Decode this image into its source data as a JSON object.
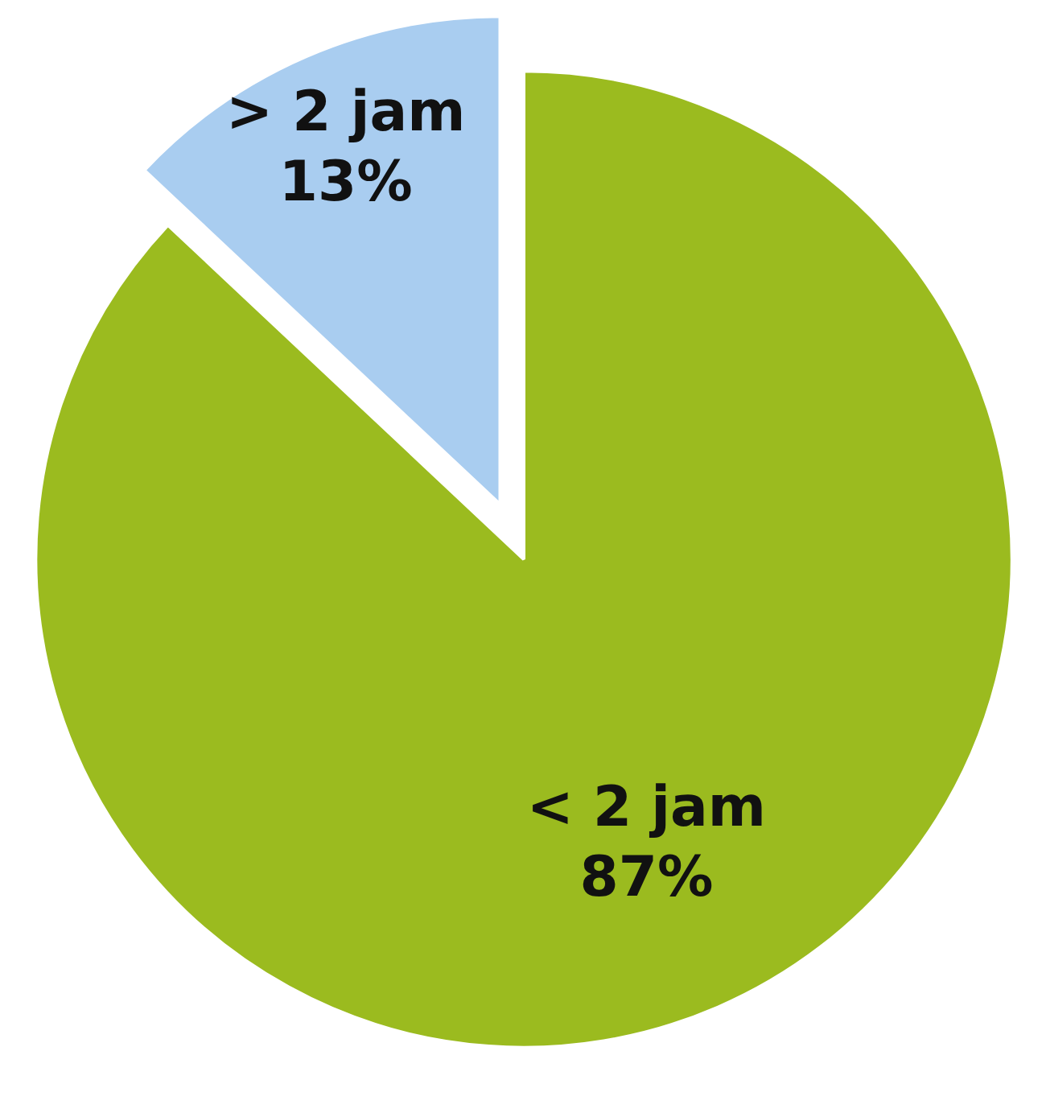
{
  "chart_data": {
    "type": "pie",
    "categories": [
      "< 2 jam",
      "> 2 jam"
    ],
    "values": [
      87,
      13
    ],
    "colors": [
      "#9bbb1f",
      "#a9cdf0"
    ],
    "value_labels": [
      "87%",
      "13%"
    ]
  }
}
